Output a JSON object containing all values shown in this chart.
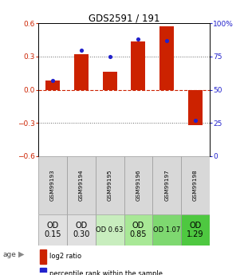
{
  "title": "GDS2591 / 191",
  "samples": [
    "GSM99193",
    "GSM99194",
    "GSM99195",
    "GSM99196",
    "GSM99197",
    "GSM99198"
  ],
  "log2_ratio": [
    0.08,
    0.32,
    0.16,
    0.44,
    0.57,
    -0.32
  ],
  "percentile_rank": [
    57,
    80,
    75,
    88,
    87,
    27
  ],
  "age_raw": [
    "OD\n0.15",
    "OD\n0.30",
    "OD 0.63",
    "OD\n0.85",
    "OD 1.07",
    "OD\n1.29"
  ],
  "age_bg": [
    "#e0e0e0",
    "#e0e0e0",
    "#c8edbe",
    "#a8e896",
    "#7ed870",
    "#4ec840"
  ],
  "age_fontsize": [
    7,
    7,
    6,
    7,
    6,
    7
  ],
  "ylim_left": [
    -0.6,
    0.6
  ],
  "ylim_right": [
    0,
    100
  ],
  "yticks_left": [
    -0.6,
    -0.3,
    0.0,
    0.3,
    0.6
  ],
  "yticks_right": [
    0,
    25,
    50,
    75,
    100
  ],
  "bar_color": "#cc2200",
  "dot_color": "#2222cc",
  "bar_width": 0.5,
  "legend_bar_label": "log2 ratio",
  "legend_dot_label": "percentile rank within the sample",
  "left_label_color": "#cc2200",
  "right_label_color": "#2222cc",
  "hline_color": "#cc2200",
  "dotline_color": "#666666",
  "grid_color": "#888888"
}
